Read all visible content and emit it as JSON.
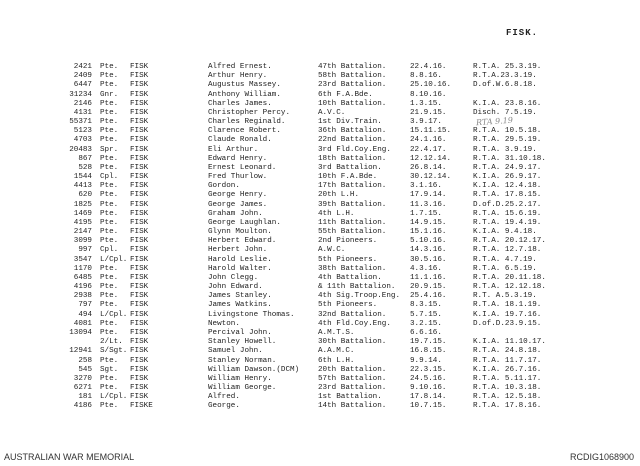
{
  "header": {
    "title": "FISK."
  },
  "annotation": "RTA 9.19",
  "rows": [
    {
      "num": "2421",
      "rank": "Pte.",
      "surname": "FISK",
      "first": "Alfred Ernest.",
      "unit": "47th Battalion.",
      "date": "22.4.16.",
      "fate": "R.T.A. 25.3.19."
    },
    {
      "num": "2409",
      "rank": "Pte.",
      "surname": "FISK",
      "first": "Arthur Henry.",
      "unit": "58th Battalion.",
      "date": "8.8.16.",
      "fate": "R.T.A.23.3.19."
    },
    {
      "num": "6447",
      "rank": "Pte.",
      "surname": "FISK",
      "first": "Augustus Massey.",
      "unit": "23rd Battalion.",
      "date": "25.10.16.",
      "fate": "D.of.W.6.8.18."
    },
    {
      "num": "31234",
      "rank": "Gnr.",
      "surname": "FISK",
      "first": "Anthony William.",
      "unit": "6th F.A.Bde.",
      "date": "8.10.16.",
      "fate": ""
    },
    {
      "num": "2146",
      "rank": "Pte.",
      "surname": "FISK",
      "first": "Charles James.",
      "unit": "10th Battalion.",
      "date": "1.3.15.",
      "fate": "K.I.A. 23.8.16."
    },
    {
      "num": "4131",
      "rank": "Pte.",
      "surname": "FISK",
      "first": "Christopher Percy.",
      "unit": "A.V.C.",
      "date": "21.9.15.",
      "fate": "Disch. 7.5.19."
    },
    {
      "num": "55371",
      "rank": "Pte.",
      "surname": "FISK",
      "first": "Charles Reginald.",
      "unit": "1st Div.Train.",
      "date": "3.9.17.",
      "fate": ""
    },
    {
      "num": "5123",
      "rank": "Pte.",
      "surname": "FISK",
      "first": "Clarence Robert.",
      "unit": "36th Battalion.",
      "date": "15.11.15.",
      "fate": "R.T.A. 10.5.18."
    },
    {
      "num": "4703",
      "rank": "Pte.",
      "surname": "FISK",
      "first": "Claude Ronald.",
      "unit": "22nd Battalion.",
      "date": "24.1.16.",
      "fate": "R.T.A. 29.5.19."
    },
    {
      "num": "20483",
      "rank": "Spr.",
      "surname": "FISK",
      "first": "Eli Arthur.",
      "unit": "3rd Fld.Coy.Eng.",
      "date": "22.4.17.",
      "fate": "R.T.A. 3.9.19."
    },
    {
      "num": "867",
      "rank": "Pte.",
      "surname": "FISK",
      "first": "Edward Henry.",
      "unit": "18th Battalion.",
      "date": "12.12.14.",
      "fate": "R.T.A. 31.10.18."
    },
    {
      "num": "528",
      "rank": "Pte.",
      "surname": "FISK",
      "first": "Ernest Leonard.",
      "unit": "3rd Battalion.",
      "date": "26.8.14.",
      "fate": "R.T.A. 24.9.17."
    },
    {
      "num": "1544",
      "rank": "Cpl.",
      "surname": "FISK",
      "first": "Fred Thurlow.",
      "unit": "10th F.A.Bde.",
      "date": "30.12.14.",
      "fate": "K.I.A. 26.9.17."
    },
    {
      "num": "4413",
      "rank": "Pte.",
      "surname": "FISK",
      "first": "Gordon.",
      "unit": "17th Battalion.",
      "date": "3.1.16.",
      "fate": "K.I.A. 12.4.18."
    },
    {
      "num": "620",
      "rank": "Pte.",
      "surname": "FISK",
      "first": "George Henry.",
      "unit": "20th L.H.",
      "date": "17.9.14.",
      "fate": "R.T.A. 17.8.15."
    },
    {
      "num": "1825",
      "rank": "Pte.",
      "surname": "FISK",
      "first": "George James.",
      "unit": "39th Battalion.",
      "date": "11.3.16.",
      "fate": "D.of.D.25.2.17."
    },
    {
      "num": "1469",
      "rank": "Pte.",
      "surname": "FISK",
      "first": "Graham John.",
      "unit": "4th L.H.",
      "date": "1.7.15.",
      "fate": "R.T.A. 15.6.19."
    },
    {
      "num": "4195",
      "rank": "Pte.",
      "surname": "FISK",
      "first": "George Laughlan.",
      "unit": "11th Battalion.",
      "date": "14.9.15.",
      "fate": "R.T.A. 19.4.19."
    },
    {
      "num": "2147",
      "rank": "Pte.",
      "surname": "FISK",
      "first": "Glynn Moulton.",
      "unit": "55th Battalion.",
      "date": "15.1.16.",
      "fate": "K.I.A. 9.4.18."
    },
    {
      "num": "3099",
      "rank": "Pte.",
      "surname": "FISK",
      "first": "Herbert Edward.",
      "unit": "2nd Pioneers.",
      "date": "5.10.16.",
      "fate": "R.T.A. 20.12.17."
    },
    {
      "num": "997",
      "rank": "Cpl.",
      "surname": "FISK",
      "first": "Herbert John.",
      "unit": "A.W.C.",
      "date": "14.3.16.",
      "fate": "R.T.A. 12.7.18."
    },
    {
      "num": "3547",
      "rank": "L/Cpl.",
      "surname": "FISK",
      "first": "Harold Leslie.",
      "unit": "5th Pioneers.",
      "date": "30.5.16.",
      "fate": "R.T.A. 4.7.19."
    },
    {
      "num": "1170",
      "rank": "Pte.",
      "surname": "FISK",
      "first": "Harold Walter.",
      "unit": "38th Battalion.",
      "date": "4.3.16.",
      "fate": "R.T.A. 6.5.19."
    },
    {
      "num": "6485",
      "rank": "Pte.",
      "surname": "FISK",
      "first": "John Clegg.",
      "unit": "4th Battalion.",
      "date": "11.1.16.",
      "fate": "R.T.A. 20.11.18."
    },
    {
      "num": "4196",
      "rank": "Pte.",
      "surname": "FISK",
      "first": "John Edward.",
      "unit": "& 11th Battalion.",
      "date": "20.9.15.",
      "fate": "R.T.A. 12.12.18."
    },
    {
      "num": "2938",
      "rank": "Pte.",
      "surname": "FISK",
      "first": "James Stanley.",
      "unit": "4th Sig.Troop.Eng.",
      "date": "25.4.16.",
      "fate": "R.T. A.5.3.19."
    },
    {
      "num": "797",
      "rank": "Pte.",
      "surname": "FISK",
      "first": "James Watkins.",
      "unit": "5th Pioneers.",
      "date": "8.3.15.",
      "fate": "R.T.A. 18.1.19."
    },
    {
      "num": "494",
      "rank": "L/Cpl.",
      "surname": "FISK",
      "first": "Livingstone Thomas.",
      "unit": "32nd Battalion.",
      "date": "5.7.15.",
      "fate": "K.I.A. 19.7.16."
    },
    {
      "num": "4081",
      "rank": "Pte.",
      "surname": "FISK",
      "first": "Newton.",
      "unit": "4th Fld.Coy.Eng.",
      "date": "3.2.15.",
      "fate": "D.of.D.23.9.15."
    },
    {
      "num": "13094",
      "rank": "Pte.",
      "surname": "FISK",
      "first": "Percival John.",
      "unit": "A.M.T.S.",
      "date": "6.6.16.",
      "fate": ""
    },
    {
      "num": "",
      "rank": "2/Lt.",
      "surname": "FISK",
      "first": "Stanley Howell.",
      "unit": "30th Battalion.",
      "date": "19.7.15.",
      "fate": "K.I.A. 11.10.17."
    },
    {
      "num": "12941",
      "rank": "S/Sgt.",
      "surname": "FISK",
      "first": "Samuel John.",
      "unit": "A.A.M.C.",
      "date": "16.8.15.",
      "fate": "R.T.A. 24.8.18."
    },
    {
      "num": "258",
      "rank": "Pte.",
      "surname": "FISK",
      "first": "Stanley Norman.",
      "unit": "6th L.H.",
      "date": "9.9.14.",
      "fate": "R.T.A. 11.7.17."
    },
    {
      "num": "545",
      "rank": "Sgt.",
      "surname": "FISK",
      "first": "William Dawson.(DCM)",
      "unit": "20th Battalion.",
      "date": "22.3.15.",
      "fate": "K.I.A. 26.7.16."
    },
    {
      "num": "3270",
      "rank": "Pte.",
      "surname": "FISK",
      "first": "William Henry.",
      "unit": "57th Battalion.",
      "date": "24.5.16.",
      "fate": "R.T.A. 5.11.17."
    },
    {
      "num": "6271",
      "rank": "Pte.",
      "surname": "FISK",
      "first": "William George.",
      "unit": "23rd Battalion.",
      "date": "9.10.16.",
      "fate": "R.T.A. 10.3.18."
    },
    {
      "num": "181",
      "rank": "L/Cpl.",
      "surname": "FISK",
      "first": "Alfred.",
      "unit": "1st Battalion.",
      "date": "17.8.14.",
      "fate": "R.T.A. 12.5.18."
    },
    {
      "num": "4186",
      "rank": "Pte.",
      "surname": "FISKE",
      "first": "George.",
      "unit": "14th Battalion.",
      "date": "10.7.15.",
      "fate": "R.T.A. 17.8.16."
    }
  ],
  "footer": {
    "left": "AUSTRALIAN WAR MEMORIAL",
    "right": "RCDIG1068900"
  }
}
